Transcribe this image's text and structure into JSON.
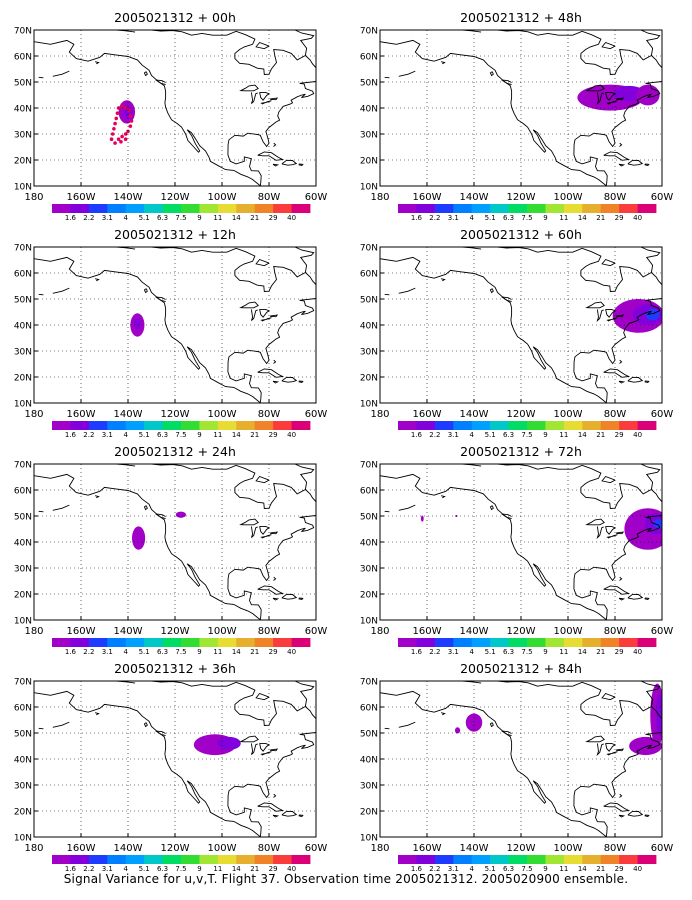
{
  "caption": "Signal Variance for u,v,T. Flight 37. Observation time 2005021312. 2005020900 ensemble.",
  "chart_data": {
    "type": "heatmap",
    "map_extent": {
      "lon": [
        -180,
        -60
      ],
      "lat": [
        10,
        70
      ]
    },
    "lat_ticks": [
      "70N",
      "60N",
      "50N",
      "40N",
      "30N",
      "20N",
      "10N"
    ],
    "lon_ticks": [
      "180",
      "160W",
      "140W",
      "120W",
      "100W",
      "80W",
      "60W"
    ],
    "grid": "dotted",
    "colorbar": {
      "labels": [
        "1.6",
        "2.2",
        "3.1",
        "4",
        "5.1",
        "6.3",
        "7.5",
        "9",
        "11",
        "14",
        "21",
        "29",
        "40"
      ],
      "colors": [
        "#a000c8",
        "#8200dc",
        "#1e3cff",
        "#0080ff",
        "#00a0ff",
        "#00c8c8",
        "#00dc64",
        "#32dc32",
        "#a0e632",
        "#e6dc32",
        "#e6af2d",
        "#f08228",
        "#fa3c3c",
        "#dc0078"
      ]
    },
    "panels": [
      {
        "title": "2005021312 + 00h",
        "features": [
          {
            "shape": "blob",
            "lon": -140.5,
            "lat": 38.5,
            "rx": 3.5,
            "ry": 4.5,
            "color": "#a000c8"
          },
          {
            "shape": "blob",
            "lon": -140.0,
            "lat": 38.5,
            "rx": 1.8,
            "ry": 2.6,
            "color": "#8200dc"
          },
          {
            "shape": "dots",
            "color": "#e6005a",
            "points": [
              [
                -147,
                28
              ],
              [
                -146.5,
                30
              ],
              [
                -146,
                32
              ],
              [
                -145.5,
                34
              ],
              [
                -145,
                36
              ],
              [
                -144.5,
                38
              ],
              [
                -144,
                40
              ],
              [
                -142.5,
                40.5
              ],
              [
                -141,
                40
              ],
              [
                -139.5,
                39
              ],
              [
                -139,
                37
              ],
              [
                -138.5,
                35
              ],
              [
                -139,
                33
              ],
              [
                -140,
                31
              ],
              [
                -141,
                30
              ],
              [
                -142.5,
                29
              ],
              [
                -144,
                28
              ],
              [
                -145.5,
                26.5
              ],
              [
                -143,
                27
              ],
              [
                -141,
                28
              ]
            ]
          }
        ]
      },
      {
        "title": "2005021312 + 48h",
        "features": [
          {
            "shape": "blob",
            "lon": -82,
            "lat": 44,
            "rx": 14,
            "ry": 5,
            "color": "#a000c8"
          },
          {
            "shape": "blob",
            "lon": -74,
            "lat": 45.5,
            "rx": 7,
            "ry": 3,
            "color": "#8200dc"
          },
          {
            "shape": "blob",
            "lon": -66,
            "lat": 45,
            "rx": 5,
            "ry": 4,
            "color": "#a000c8"
          }
        ]
      },
      {
        "title": "2005021312 + 12h",
        "features": [
          {
            "shape": "blob",
            "lon": -136,
            "lat": 40,
            "rx": 3,
            "ry": 4.5,
            "color": "#a000c8"
          },
          {
            "shape": "blob",
            "lon": -136,
            "lat": 40.5,
            "rx": 1.5,
            "ry": 2,
            "color": "#8200dc"
          }
        ]
      },
      {
        "title": "2005021312 + 60h",
        "features": [
          {
            "shape": "blob",
            "lon": -70,
            "lat": 43.5,
            "rx": 11,
            "ry": 6.5,
            "color": "#a000c8"
          },
          {
            "shape": "blob",
            "lon": -66,
            "lat": 44,
            "rx": 6.5,
            "ry": 4,
            "color": "#8200dc"
          },
          {
            "shape": "blob",
            "lon": -64,
            "lat": 44,
            "rx": 3,
            "ry": 2.2,
            "color": "#1e3cff"
          }
        ]
      },
      {
        "title": "2005021312 + 24h",
        "features": [
          {
            "shape": "blob",
            "lon": -135.5,
            "lat": 41.5,
            "rx": 2.8,
            "ry": 4.5,
            "color": "#a000c8"
          },
          {
            "shape": "blob",
            "lon": -117.5,
            "lat": 50.5,
            "rx": 2.2,
            "ry": 1.2,
            "color": "#a000c8"
          }
        ]
      },
      {
        "title": "2005021312 + 72h",
        "features": [
          {
            "shape": "blob",
            "lon": -66,
            "lat": 45,
            "rx": 10,
            "ry": 8,
            "color": "#a000c8"
          },
          {
            "shape": "blob",
            "lon": -62.5,
            "lat": 47,
            "rx": 5,
            "ry": 4,
            "color": "#8200dc"
          },
          {
            "shape": "blob",
            "lon": -61.5,
            "lat": 47,
            "rx": 2.2,
            "ry": 1.8,
            "color": "#1e3cff"
          },
          {
            "shape": "blob",
            "lon": -162,
            "lat": 49,
            "rx": 0.6,
            "ry": 1.2,
            "color": "#a000c8"
          },
          {
            "shape": "blob",
            "lon": -147.5,
            "lat": 50,
            "rx": 0.5,
            "ry": 0.4,
            "color": "#a000c8"
          }
        ]
      },
      {
        "title": "2005021312 + 36h",
        "features": [
          {
            "shape": "blob",
            "lon": -103,
            "lat": 45.5,
            "rx": 9,
            "ry": 4,
            "color": "#a000c8"
          },
          {
            "shape": "blob",
            "lon": -97,
            "lat": 46,
            "rx": 5,
            "ry": 2.5,
            "color": "#8200dc"
          }
        ]
      },
      {
        "title": "2005021312 + 84h",
        "features": [
          {
            "shape": "blob",
            "lon": -140,
            "lat": 54,
            "rx": 3.5,
            "ry": 3.5,
            "color": "#a000c8"
          },
          {
            "shape": "blob",
            "lon": -147,
            "lat": 51,
            "rx": 1.1,
            "ry": 1.2,
            "color": "#a000c8"
          },
          {
            "shape": "blob",
            "lon": -67,
            "lat": 45,
            "rx": 7,
            "ry": 3.5,
            "color": "#a000c8"
          },
          {
            "shape": "blob",
            "lon": -62,
            "lat": 57,
            "rx": 3,
            "ry": 12,
            "color": "#a000c8"
          },
          {
            "shape": "blob",
            "lon": -61,
            "lat": 57,
            "rx": 1.5,
            "ry": 8,
            "color": "#8200dc"
          }
        ]
      }
    ]
  }
}
